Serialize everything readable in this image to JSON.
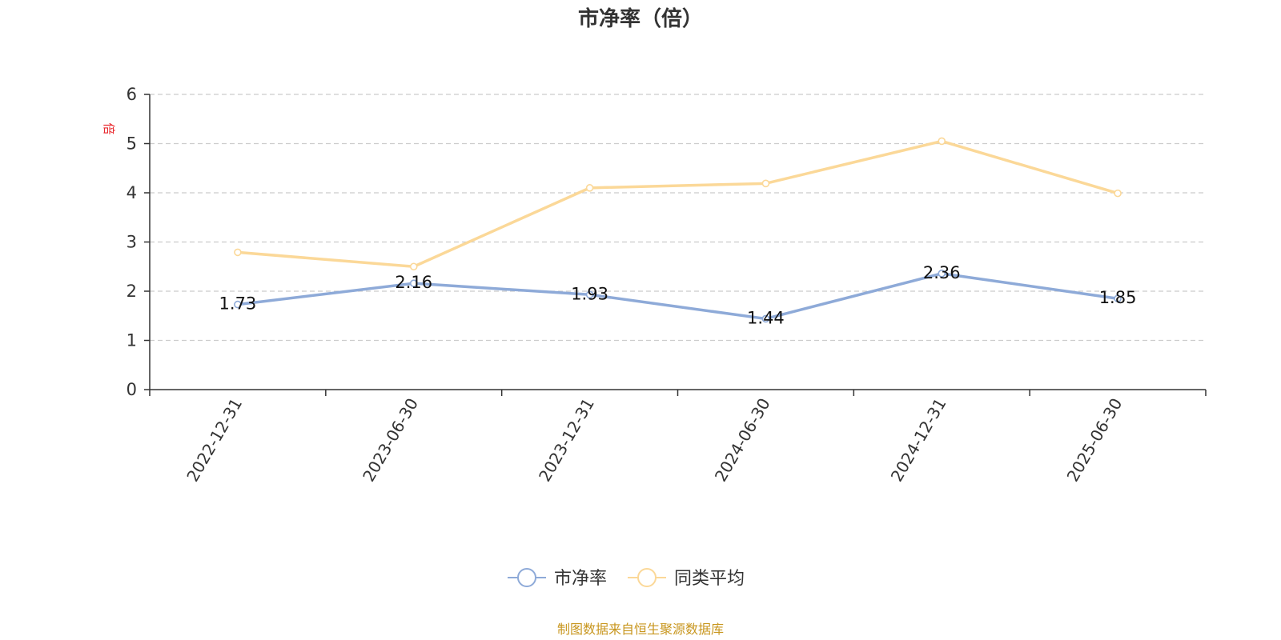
{
  "chart_data": {
    "type": "line",
    "title": "市净率（倍）",
    "ylabel": "倍",
    "ylim": [
      0,
      6
    ],
    "yticks": [
      0,
      1,
      2,
      3,
      4,
      5,
      6
    ],
    "categories": [
      "2022-12-31",
      "2023-06-30",
      "2023-12-31",
      "2024-06-30",
      "2024-12-31",
      "2025-06-30"
    ],
    "series": [
      {
        "name": "市净率",
        "values": [
          1.73,
          2.16,
          1.93,
          1.44,
          2.36,
          1.85
        ],
        "color": "#8eaad8",
        "data_labels": [
          "1.73",
          "2.16",
          "1.93",
          "1.44",
          "2.36",
          "1.85"
        ]
      },
      {
        "name": "同类平均",
        "values": [
          2.79,
          2.5,
          4.1,
          4.19,
          5.05,
          3.99
        ],
        "color": "#fbd898"
      }
    ],
    "grid": true,
    "legend_position": "bottom"
  },
  "footer": {
    "source": "制图数据来自恒生聚源数据库"
  }
}
